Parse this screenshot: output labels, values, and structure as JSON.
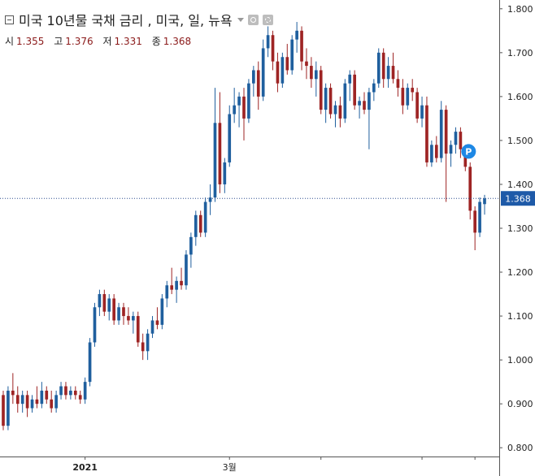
{
  "legend": {
    "title": "미국 10년물 국채 금리 , 미국, 일, 뉴욕",
    "ohlc": [
      {
        "label": "시",
        "value": "1.355"
      },
      {
        "label": "고",
        "value": "1.376"
      },
      {
        "label": "저",
        "value": "1.331"
      },
      {
        "label": "종",
        "value": "1.368"
      }
    ]
  },
  "colors": {
    "up": "#1f5f9e",
    "down": "#9e2424",
    "price_line": "#2f4f8f",
    "price_label_bg": "#1e5aa8",
    "marker": "#1e88e5"
  },
  "chart_data": {
    "type": "candlestick",
    "ylim": [
      0.78,
      1.82
    ],
    "y_ticks": [
      "0.800",
      "0.900",
      "1.000",
      "1.100",
      "1.200",
      "1.300",
      "1.400",
      "1.500",
      "1.600",
      "1.700",
      "1.800"
    ],
    "x_tick_labels": [
      "2021",
      "3월"
    ],
    "last_price": "1.368",
    "marker_label": "P",
    "marker_value": 1.475,
    "grid": false,
    "candles": [
      [
        0.92,
        0.93,
        0.84,
        0.85
      ],
      [
        0.85,
        0.94,
        0.84,
        0.93
      ],
      [
        0.93,
        0.97,
        0.9,
        0.92
      ],
      [
        0.92,
        0.94,
        0.88,
        0.9
      ],
      [
        0.9,
        0.93,
        0.88,
        0.92
      ],
      [
        0.92,
        0.93,
        0.87,
        0.89
      ],
      [
        0.89,
        0.92,
        0.88,
        0.91
      ],
      [
        0.91,
        0.94,
        0.89,
        0.9
      ],
      [
        0.9,
        0.95,
        0.89,
        0.93
      ],
      [
        0.93,
        0.94,
        0.9,
        0.91
      ],
      [
        0.91,
        0.93,
        0.88,
        0.89
      ],
      [
        0.89,
        0.93,
        0.88,
        0.92
      ],
      [
        0.92,
        0.95,
        0.91,
        0.94
      ],
      [
        0.94,
        0.95,
        0.91,
        0.92
      ],
      [
        0.92,
        0.94,
        0.91,
        0.93
      ],
      [
        0.93,
        0.94,
        0.91,
        0.92
      ],
      [
        0.92,
        0.93,
        0.9,
        0.91
      ],
      [
        0.91,
        0.96,
        0.9,
        0.95
      ],
      [
        0.95,
        1.05,
        0.94,
        1.04
      ],
      [
        1.04,
        1.13,
        1.03,
        1.12
      ],
      [
        1.12,
        1.16,
        1.1,
        1.15
      ],
      [
        1.15,
        1.16,
        1.1,
        1.11
      ],
      [
        1.11,
        1.15,
        1.09,
        1.14
      ],
      [
        1.14,
        1.15,
        1.08,
        1.09
      ],
      [
        1.09,
        1.13,
        1.08,
        1.12
      ],
      [
        1.12,
        1.13,
        1.08,
        1.1
      ],
      [
        1.1,
        1.12,
        1.08,
        1.09
      ],
      [
        1.09,
        1.11,
        1.06,
        1.1
      ],
      [
        1.1,
        1.11,
        1.03,
        1.04
      ],
      [
        1.04,
        1.06,
        1.0,
        1.02
      ],
      [
        1.02,
        1.07,
        1.0,
        1.06
      ],
      [
        1.06,
        1.1,
        1.05,
        1.09
      ],
      [
        1.09,
        1.12,
        1.07,
        1.08
      ],
      [
        1.08,
        1.15,
        1.07,
        1.14
      ],
      [
        1.14,
        1.18,
        1.12,
        1.17
      ],
      [
        1.17,
        1.21,
        1.15,
        1.16
      ],
      [
        1.16,
        1.19,
        1.13,
        1.18
      ],
      [
        1.18,
        1.21,
        1.16,
        1.17
      ],
      [
        1.17,
        1.25,
        1.16,
        1.24
      ],
      [
        1.24,
        1.29,
        1.21,
        1.28
      ],
      [
        1.28,
        1.34,
        1.26,
        1.33
      ],
      [
        1.33,
        1.34,
        1.28,
        1.29
      ],
      [
        1.29,
        1.37,
        1.28,
        1.36
      ],
      [
        1.36,
        1.4,
        1.33,
        1.37
      ],
      [
        1.37,
        1.62,
        1.36,
        1.54
      ],
      [
        1.54,
        1.61,
        1.38,
        1.4
      ],
      [
        1.4,
        1.46,
        1.38,
        1.45
      ],
      [
        1.45,
        1.58,
        1.44,
        1.56
      ],
      [
        1.56,
        1.62,
        1.54,
        1.58
      ],
      [
        1.58,
        1.61,
        1.53,
        1.6
      ],
      [
        1.6,
        1.62,
        1.5,
        1.55
      ],
      [
        1.55,
        1.64,
        1.54,
        1.63
      ],
      [
        1.63,
        1.67,
        1.6,
        1.66
      ],
      [
        1.66,
        1.68,
        1.57,
        1.6
      ],
      [
        1.6,
        1.73,
        1.59,
        1.71
      ],
      [
        1.71,
        1.76,
        1.69,
        1.74
      ],
      [
        1.74,
        1.75,
        1.66,
        1.68
      ],
      [
        1.68,
        1.7,
        1.61,
        1.63
      ],
      [
        1.63,
        1.7,
        1.62,
        1.69
      ],
      [
        1.69,
        1.72,
        1.65,
        1.66
      ],
      [
        1.66,
        1.74,
        1.65,
        1.73
      ],
      [
        1.73,
        1.77,
        1.7,
        1.75
      ],
      [
        1.75,
        1.76,
        1.66,
        1.68
      ],
      [
        1.68,
        1.71,
        1.64,
        1.67
      ],
      [
        1.67,
        1.69,
        1.62,
        1.64
      ],
      [
        1.64,
        1.68,
        1.6,
        1.66
      ],
      [
        1.66,
        1.67,
        1.56,
        1.57
      ],
      [
        1.57,
        1.63,
        1.54,
        1.62
      ],
      [
        1.62,
        1.63,
        1.55,
        1.56
      ],
      [
        1.56,
        1.59,
        1.53,
        1.58
      ],
      [
        1.58,
        1.6,
        1.53,
        1.55
      ],
      [
        1.55,
        1.64,
        1.54,
        1.63
      ],
      [
        1.63,
        1.66,
        1.59,
        1.65
      ],
      [
        1.65,
        1.66,
        1.57,
        1.58
      ],
      [
        1.58,
        1.6,
        1.55,
        1.59
      ],
      [
        1.59,
        1.61,
        1.56,
        1.57
      ],
      [
        1.57,
        1.62,
        1.48,
        1.61
      ],
      [
        1.61,
        1.64,
        1.59,
        1.63
      ],
      [
        1.63,
        1.71,
        1.62,
        1.7
      ],
      [
        1.7,
        1.71,
        1.62,
        1.64
      ],
      [
        1.64,
        1.69,
        1.62,
        1.67
      ],
      [
        1.67,
        1.7,
        1.63,
        1.64
      ],
      [
        1.64,
        1.66,
        1.6,
        1.62
      ],
      [
        1.62,
        1.64,
        1.56,
        1.58
      ],
      [
        1.58,
        1.63,
        1.57,
        1.62
      ],
      [
        1.62,
        1.64,
        1.59,
        1.61
      ],
      [
        1.61,
        1.62,
        1.54,
        1.55
      ],
      [
        1.55,
        1.6,
        1.53,
        1.58
      ],
      [
        1.58,
        1.6,
        1.44,
        1.45
      ],
      [
        1.45,
        1.5,
        1.44,
        1.49
      ],
      [
        1.49,
        1.51,
        1.45,
        1.46
      ],
      [
        1.46,
        1.59,
        1.45,
        1.57
      ],
      [
        1.57,
        1.58,
        1.36,
        1.47
      ],
      [
        1.47,
        1.5,
        1.44,
        1.49
      ],
      [
        1.49,
        1.53,
        1.47,
        1.52
      ],
      [
        1.52,
        1.53,
        1.46,
        1.48
      ],
      [
        1.48,
        1.49,
        1.43,
        1.44
      ],
      [
        1.44,
        1.45,
        1.32,
        1.34
      ],
      [
        1.34,
        1.35,
        1.25,
        1.29
      ],
      [
        1.29,
        1.37,
        1.28,
        1.36
      ],
      [
        1.355,
        1.376,
        1.331,
        1.368
      ]
    ]
  }
}
